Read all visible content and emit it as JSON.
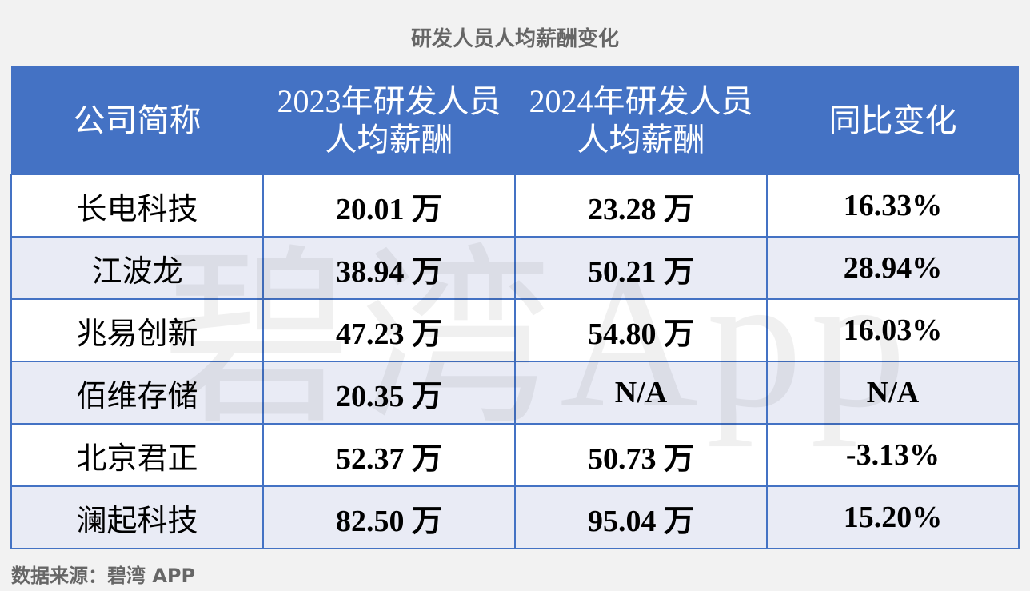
{
  "title": "研发人员人均薪酬变化",
  "table": {
    "header": [
      "公司简称",
      "2023年研发人员人均薪酬",
      "2024年研发人员人均薪酬",
      "同比变化"
    ],
    "rows": [
      [
        "长电科技",
        "20.01 万",
        "23.28 万",
        "16.33%"
      ],
      [
        "江波龙",
        "38.94 万",
        "50.21 万",
        "28.94%"
      ],
      [
        "兆易创新",
        "47.23 万",
        "54.80 万",
        "16.03%"
      ],
      [
        "佰维存储",
        "20.35 万",
        "N/A",
        "N/A"
      ],
      [
        "北京君正",
        "52.37 万",
        "50.73 万",
        "-3.13%"
      ],
      [
        "澜起科技",
        "82.50 万",
        "95.04 万",
        "15.20%"
      ]
    ]
  },
  "watermark": "碧湾App",
  "source": "数据来源：碧湾 APP"
}
